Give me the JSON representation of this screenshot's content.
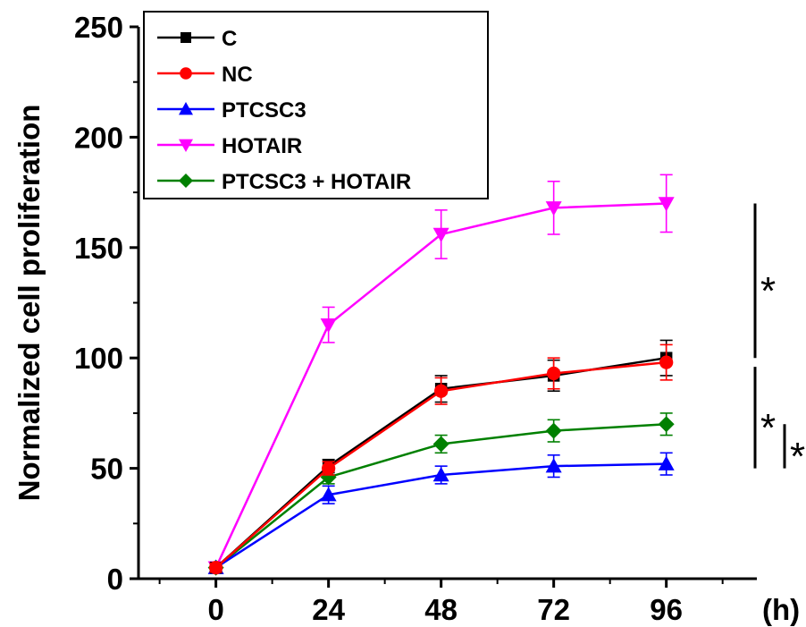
{
  "chart_data": {
    "type": "line",
    "ylabel": "Normalized cell proliferation",
    "x_unit": "(h)",
    "x": [
      0,
      24,
      48,
      72,
      96
    ],
    "xticks": [
      "0",
      "24",
      "48",
      "72",
      "96"
    ],
    "ylim": [
      0,
      250
    ],
    "yticks": [
      "0",
      "50",
      "100",
      "150",
      "200",
      "250"
    ],
    "legend_position": "top-left",
    "series": [
      {
        "name": "C",
        "color": "#000000",
        "marker": "square",
        "values": [
          5,
          51,
          86,
          92,
          100
        ],
        "errors": [
          2,
          3,
          6,
          7,
          8
        ]
      },
      {
        "name": "NC",
        "color": "#ff0000",
        "marker": "circle",
        "values": [
          5,
          50,
          85,
          93,
          98
        ],
        "errors": [
          2,
          3,
          6,
          7,
          8
        ]
      },
      {
        "name": "PTCSC3",
        "color": "#0000ff",
        "marker": "triangle-up",
        "values": [
          5,
          38,
          47,
          51,
          52
        ],
        "errors": [
          2,
          4,
          4,
          5,
          5
        ]
      },
      {
        "name": "HOTAIR",
        "color": "#ff00ff",
        "marker": "triangle-down",
        "values": [
          5,
          115,
          156,
          168,
          170
        ],
        "errors": [
          2,
          8,
          11,
          12,
          13
        ]
      },
      {
        "name": "PTCSC3 + HOTAIR",
        "color": "#008000",
        "marker": "diamond",
        "values": [
          5,
          46,
          61,
          67,
          70
        ],
        "errors": [
          2,
          3,
          4,
          5,
          5
        ]
      }
    ],
    "annotations": [
      {
        "text": "*",
        "from": 100,
        "to": 170,
        "column": 0
      },
      {
        "text": "*",
        "from": 50,
        "to": 96,
        "column": 0
      },
      {
        "text": "*",
        "from": 50,
        "to": 70,
        "column": 1
      }
    ]
  }
}
